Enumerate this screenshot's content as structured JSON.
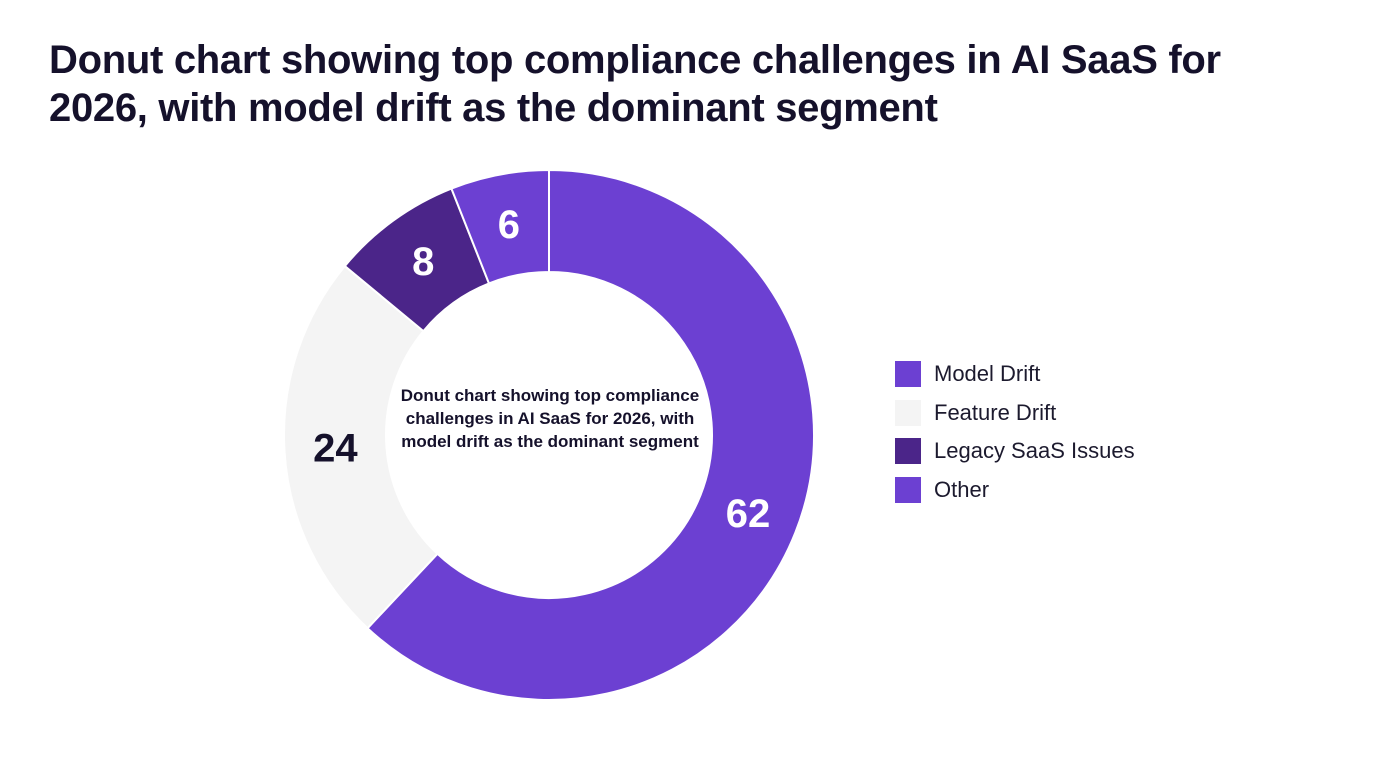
{
  "chart_data": {
    "type": "pie",
    "title": "Donut chart showing top compliance challenges in AI SaaS for 2026, with model drift as the dominant segment",
    "center_label": "Donut chart showing top compliance challenges in AI SaaS for 2026, with model drift as the dominant segment",
    "categories": [
      "Model Drift",
      "Feature Drift",
      "Legacy SaaS Issues",
      "Other"
    ],
    "values": [
      62,
      24,
      8,
      6
    ],
    "data_labels": [
      "62",
      "24",
      "8",
      "6"
    ],
    "colors": [
      "#6c40d2",
      "#f4f4f4",
      "#4b2589",
      "#6c40d2"
    ],
    "label_colors": [
      "#ffffff",
      "#15112b",
      "#ffffff",
      "#ffffff"
    ],
    "donut": true,
    "legend_position": "right"
  }
}
